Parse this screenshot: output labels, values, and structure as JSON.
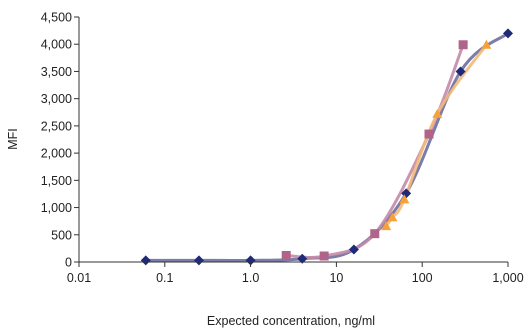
{
  "chart_data": {
    "type": "scatter",
    "xlabel": "Expected concentration, ng/ml",
    "ylabel": "MFI",
    "x_scale": "log",
    "xlim": [
      0.01,
      1000
    ],
    "ylim": [
      0,
      4500
    ],
    "x_ticks": [
      0.01,
      0.1,
      1.0,
      10,
      100,
      1000
    ],
    "x_tick_labels": [
      "0.01",
      "0.1",
      "1.0",
      "10",
      "100",
      "1,000"
    ],
    "y_ticks": [
      0,
      500,
      1000,
      1500,
      2000,
      2500,
      3000,
      3500,
      4000,
      4500
    ],
    "y_tick_labels": [
      "0",
      "500",
      "1,000",
      "1,500",
      "2,000",
      "2,500",
      "3,000",
      "3,500",
      "4,000",
      "4,500"
    ],
    "grid": false,
    "series": [
      {
        "marker": "diamond",
        "color": "#1f2a7a",
        "curve_color": "#6b6f9e",
        "points": [
          [
            0.06,
            30
          ],
          [
            0.25,
            30
          ],
          [
            1.0,
            30
          ],
          [
            4.0,
            60
          ],
          [
            16,
            230
          ],
          [
            65,
            1260
          ],
          [
            280,
            3500
          ],
          [
            1000,
            4200
          ]
        ]
      },
      {
        "marker": "square",
        "color": "#b0648a",
        "curve_color": "#c48aa8",
        "points": [
          [
            2.6,
            120
          ],
          [
            7.2,
            110
          ],
          [
            28,
            520
          ],
          [
            120,
            2350
          ],
          [
            300,
            3990
          ]
        ]
      },
      {
        "marker": "triangle",
        "color": "#f6a13a",
        "curve_color": "#f4b978",
        "points": [
          [
            38,
            660
          ],
          [
            45,
            820
          ],
          [
            62,
            1150
          ],
          [
            150,
            2720
          ],
          [
            560,
            3990
          ]
        ]
      }
    ]
  }
}
